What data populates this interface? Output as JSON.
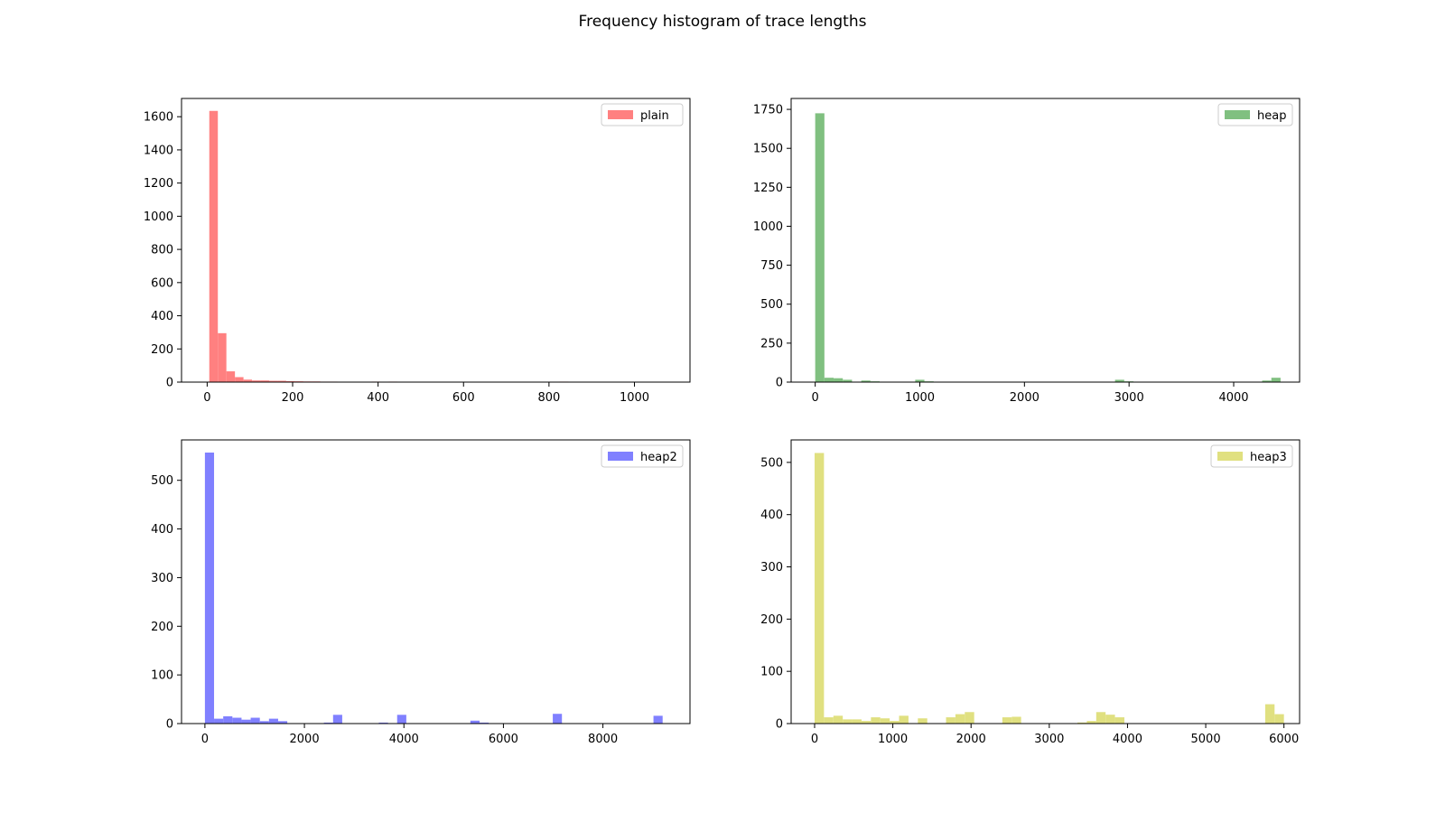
{
  "figure": {
    "title": "Frequency histogram of trace lengths"
  },
  "chart_data": [
    {
      "type": "bar",
      "title": "",
      "xlabel": "",
      "ylabel": "",
      "legend": {
        "label": "plain",
        "placement": "top-right"
      },
      "color": "#ff8080",
      "xlim": [
        -60,
        1130
      ],
      "ylim": [
        0,
        1710
      ],
      "xticks": [
        0,
        200,
        400,
        600,
        800,
        1000
      ],
      "yticks": [
        0,
        200,
        400,
        600,
        800,
        1000,
        1200,
        1400,
        1600
      ],
      "x": [
        15,
        35,
        55,
        75,
        95,
        115,
        135,
        155,
        175,
        195,
        215,
        235,
        255,
        275,
        295,
        315,
        375,
        395,
        435,
        815,
        835
      ],
      "values": [
        1635,
        295,
        65,
        30,
        15,
        10,
        10,
        8,
        8,
        6,
        5,
        4,
        4,
        3,
        3,
        2,
        2,
        3,
        3,
        2,
        3
      ],
      "bin_width": 20
    },
    {
      "type": "bar",
      "title": "",
      "xlabel": "",
      "ylabel": "",
      "legend": {
        "label": "heap",
        "placement": "top-right"
      },
      "color": "#80c080",
      "xlim": [
        -230,
        4630
      ],
      "ylim": [
        0,
        1820
      ],
      "xticks": [
        0,
        1000,
        2000,
        3000,
        4000
      ],
      "yticks": [
        0,
        250,
        500,
        750,
        1000,
        1250,
        1500,
        1750
      ],
      "x": [
        44,
        132,
        220,
        308,
        484,
        572,
        1000,
        1088,
        2910,
        2998,
        4316,
        4404
      ],
      "values": [
        1725,
        28,
        25,
        15,
        10,
        5,
        15,
        5,
        15,
        5,
        10,
        28
      ],
      "bin_width": 88
    },
    {
      "type": "bar",
      "title": "",
      "xlabel": "",
      "ylabel": "",
      "legend": {
        "label": "heap2",
        "placement": "top-right"
      },
      "color": "#8080ff",
      "xlim": [
        -470,
        9750
      ],
      "ylim": [
        0,
        583
      ],
      "xticks": [
        0,
        2000,
        4000,
        6000,
        8000
      ],
      "yticks": [
        0,
        100,
        200,
        300,
        400,
        500
      ],
      "x": [
        92,
        276,
        460,
        644,
        828,
        1012,
        1196,
        1380,
        1564,
        2484,
        2668,
        3588,
        3956,
        5428,
        5612,
        7084,
        9108
      ],
      "values": [
        557,
        10,
        15,
        12,
        8,
        12,
        5,
        10,
        5,
        2,
        18,
        2,
        18,
        6,
        2,
        20,
        16
      ],
      "bin_width": 184
    },
    {
      "type": "bar",
      "title": "",
      "xlabel": "",
      "ylabel": "",
      "legend": {
        "label": "heap3",
        "placement": "top-right"
      },
      "color": "#e0e080",
      "xlim": [
        -300,
        6200
      ],
      "ylim": [
        0,
        543
      ],
      "xticks": [
        0,
        1000,
        2000,
        3000,
        4000,
        5000,
        6000
      ],
      "yticks": [
        0,
        100,
        200,
        300,
        400,
        500
      ],
      "x": [
        60,
        180,
        300,
        420,
        540,
        660,
        780,
        900,
        1020,
        1140,
        1380,
        1740,
        1860,
        1980,
        2460,
        2580,
        3420,
        3540,
        3660,
        3780,
        3900,
        5820,
        5940
      ],
      "values": [
        518,
        12,
        15,
        8,
        8,
        5,
        12,
        10,
        5,
        15,
        10,
        12,
        18,
        22,
        12,
        13,
        2,
        5,
        22,
        17,
        12,
        37,
        18
      ],
      "bin_width": 120
    }
  ]
}
